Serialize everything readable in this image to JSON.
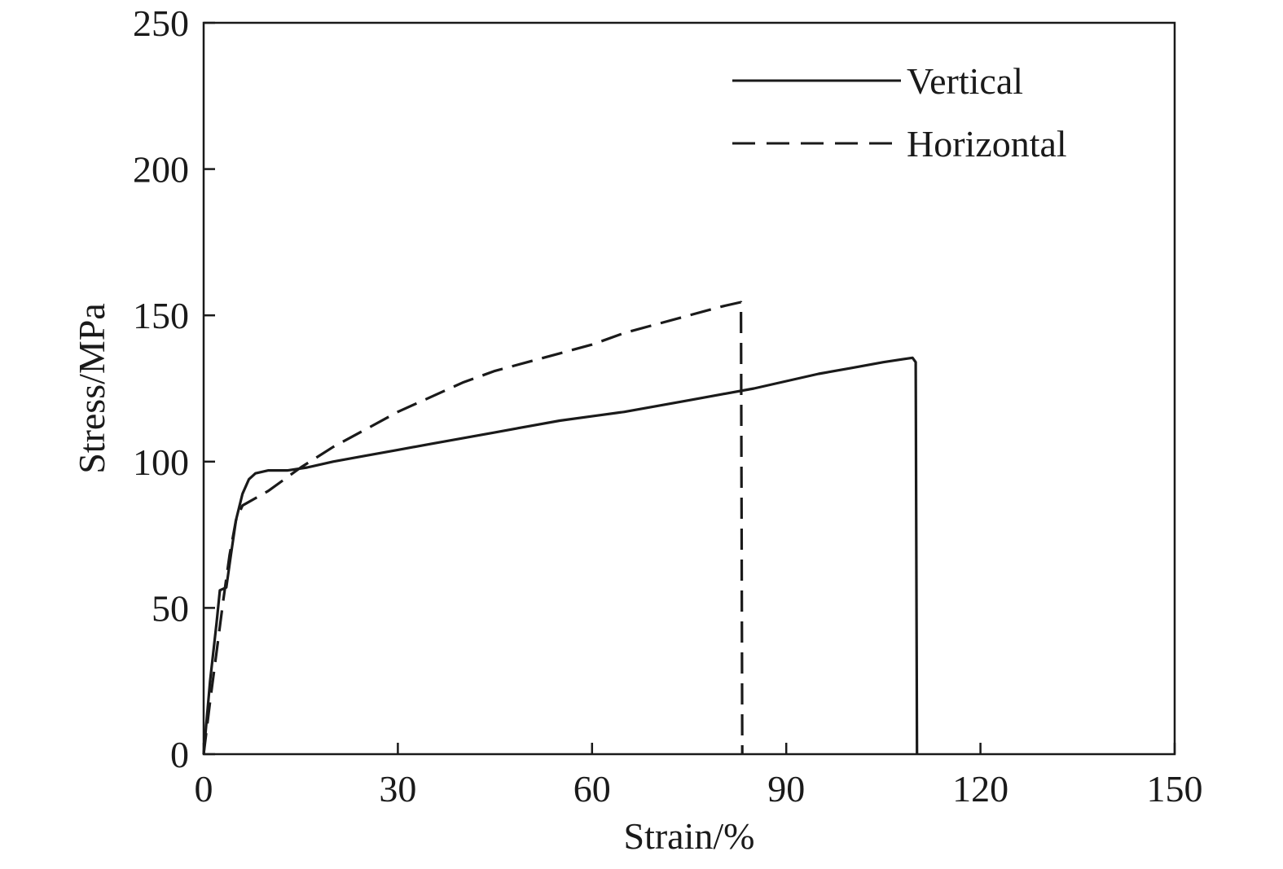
{
  "chart_data": {
    "type": "line",
    "title": "",
    "xlabel": "Strain/%",
    "ylabel": "Stress/MPa",
    "xlim": [
      0,
      150
    ],
    "ylim": [
      0,
      250
    ],
    "xticks": [
      0,
      30,
      60,
      90,
      120,
      150
    ],
    "yticks": [
      0,
      50,
      100,
      150,
      200,
      250
    ],
    "grid": false,
    "legend_position": "top-right",
    "series": [
      {
        "name": "Vertical",
        "style": "solid",
        "color": "#1a1a1a",
        "points": [
          [
            0,
            0
          ],
          [
            1,
            25
          ],
          [
            2,
            45
          ],
          [
            2.5,
            56
          ],
          [
            3.5,
            57
          ],
          [
            4.2,
            68
          ],
          [
            5,
            80
          ],
          [
            6,
            89
          ],
          [
            7,
            94
          ],
          [
            8,
            96
          ],
          [
            10,
            97
          ],
          [
            13,
            97
          ],
          [
            16,
            98
          ],
          [
            20,
            100
          ],
          [
            25,
            102
          ],
          [
            30,
            104
          ],
          [
            35,
            106
          ],
          [
            40,
            108
          ],
          [
            45,
            110
          ],
          [
            50,
            112
          ],
          [
            55,
            114
          ],
          [
            60,
            115.5
          ],
          [
            65,
            117
          ],
          [
            70,
            119
          ],
          [
            75,
            121
          ],
          [
            80,
            123
          ],
          [
            85,
            125
          ],
          [
            90,
            127.5
          ],
          [
            95,
            130
          ],
          [
            100,
            132
          ],
          [
            105,
            134
          ],
          [
            108,
            135
          ],
          [
            109.5,
            135.5
          ],
          [
            110,
            134
          ],
          [
            110.2,
            0
          ]
        ]
      },
      {
        "name": "Horizontal",
        "style": "dashed",
        "color": "#1a1a1a",
        "points": [
          [
            0,
            0
          ],
          [
            1,
            18
          ],
          [
            2,
            35
          ],
          [
            3,
            52
          ],
          [
            4,
            68
          ],
          [
            5,
            80
          ],
          [
            6,
            85
          ],
          [
            10,
            90
          ],
          [
            15,
            98
          ],
          [
            20,
            105
          ],
          [
            25,
            111
          ],
          [
            30,
            117
          ],
          [
            35,
            122
          ],
          [
            40,
            127
          ],
          [
            45,
            131
          ],
          [
            50,
            134
          ],
          [
            55,
            137
          ],
          [
            60,
            140
          ],
          [
            65,
            144
          ],
          [
            70,
            147
          ],
          [
            75,
            150
          ],
          [
            80,
            153
          ],
          [
            83,
            154.5
          ],
          [
            83.2,
            0
          ]
        ]
      }
    ]
  }
}
